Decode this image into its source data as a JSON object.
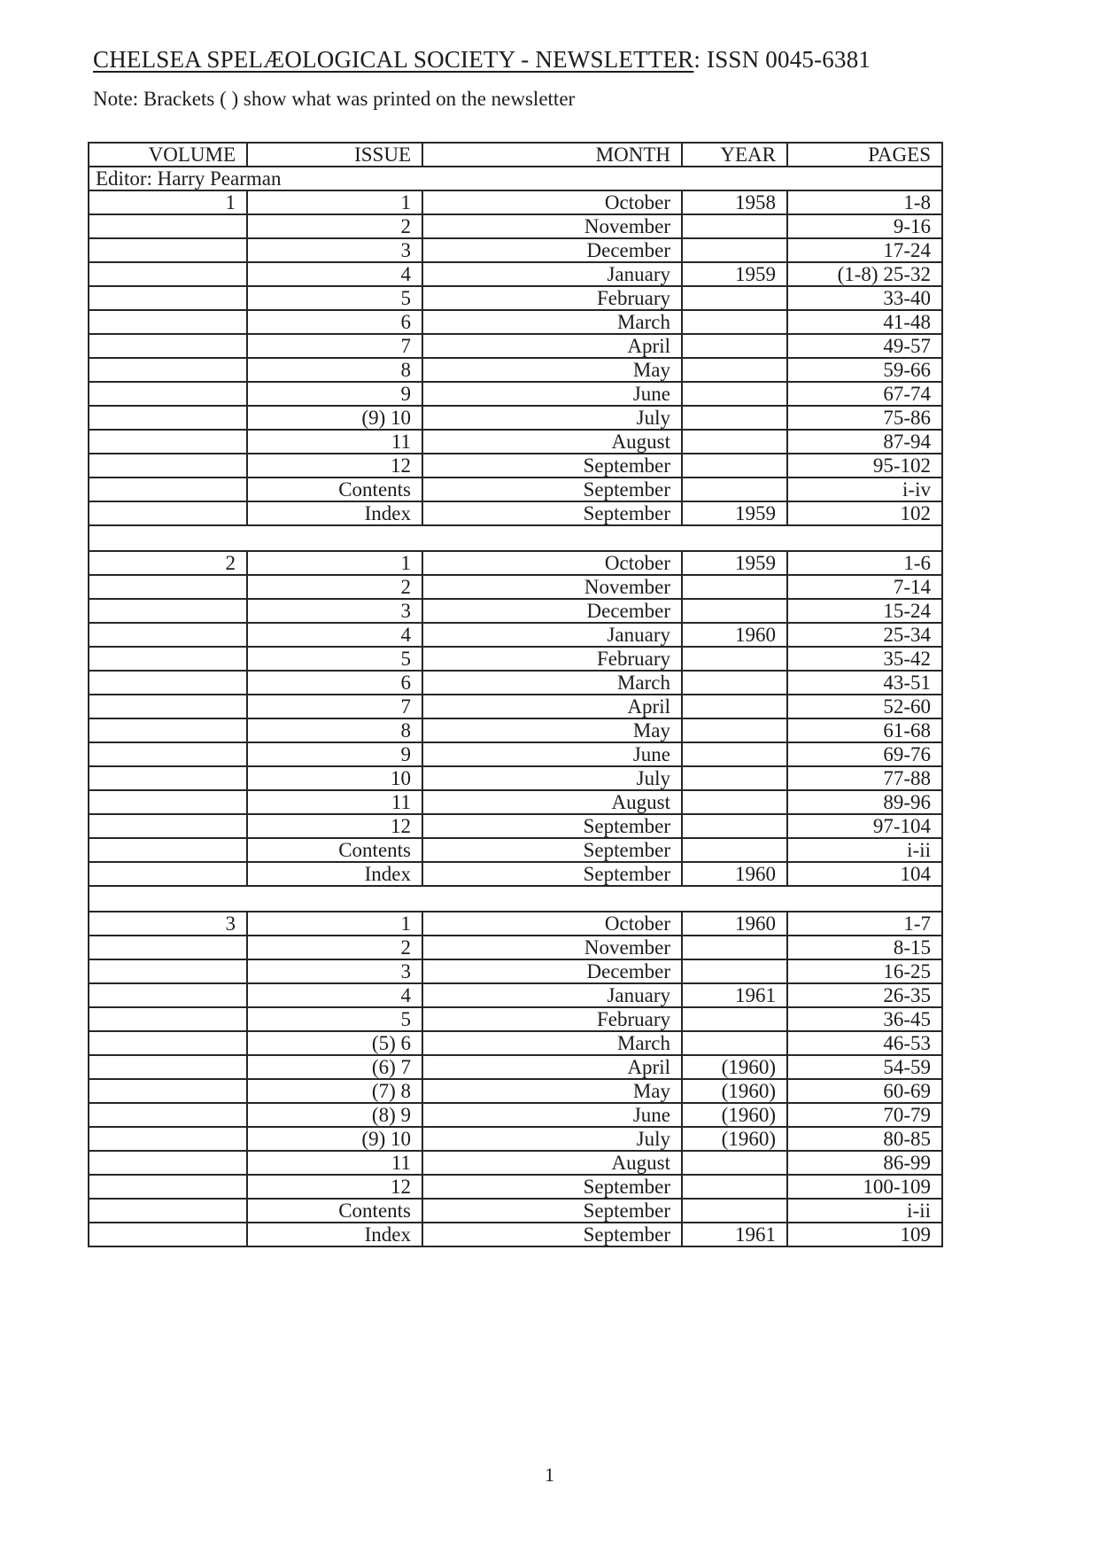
{
  "page": {
    "title_underlined": "CHELSEA SPELÆOLOGICAL SOCIETY - NEWSLETTER",
    "title_suffix": ": ISSN 0045-6381",
    "note": "Note: Brackets ( ) show what was printed on the newsletter",
    "page_number": "1"
  },
  "table": {
    "headers": [
      "VOLUME",
      "ISSUE",
      "MONTH",
      "YEAR",
      "PAGES"
    ],
    "editor_row": "Editor: Harry Pearman",
    "column_keys": [
      "volume",
      "issue",
      "month",
      "year",
      "pages"
    ],
    "blocks": [
      {
        "volume": "1",
        "rows": [
          [
            "1",
            "1",
            "October",
            "1958",
            "1-8"
          ],
          [
            "",
            "2",
            "November",
            "",
            "9-16"
          ],
          [
            "",
            "3",
            "December",
            "",
            "17-24"
          ],
          [
            "",
            "4",
            "January",
            "1959",
            "(1-8) 25-32"
          ],
          [
            "",
            "5",
            "February",
            "",
            "33-40"
          ],
          [
            "",
            "6",
            "March",
            "",
            "41-48"
          ],
          [
            "",
            "7",
            "April",
            "",
            "49-57"
          ],
          [
            "",
            "8",
            "May",
            "",
            "59-66"
          ],
          [
            "",
            "9",
            "June",
            "",
            "67-74"
          ],
          [
            "",
            "(9) 10",
            "July",
            "",
            "75-86"
          ],
          [
            "",
            "11",
            "August",
            "",
            "87-94"
          ],
          [
            "",
            "12",
            "September",
            "",
            "95-102"
          ],
          [
            "",
            "Contents",
            "September",
            "",
            "i-iv"
          ],
          [
            "",
            "Index",
            "September",
            "1959",
            "102"
          ]
        ]
      },
      {
        "volume": "2",
        "rows": [
          [
            "2",
            "1",
            "October",
            "1959",
            "1-6"
          ],
          [
            "",
            "2",
            "November",
            "",
            "7-14"
          ],
          [
            "",
            "3",
            "December",
            "",
            "15-24"
          ],
          [
            "",
            "4",
            "January",
            "1960",
            "25-34"
          ],
          [
            "",
            "5",
            "February",
            "",
            "35-42"
          ],
          [
            "",
            "6",
            "March",
            "",
            "43-51"
          ],
          [
            "",
            "7",
            "April",
            "",
            "52-60"
          ],
          [
            "",
            "8",
            "May",
            "",
            "61-68"
          ],
          [
            "",
            "9",
            "June",
            "",
            "69-76"
          ],
          [
            "",
            "10",
            "July",
            "",
            "77-88"
          ],
          [
            "",
            "11",
            "August",
            "",
            "89-96"
          ],
          [
            "",
            "12",
            "September",
            "",
            "97-104"
          ],
          [
            "",
            "Contents",
            "September",
            "",
            "i-ii"
          ],
          [
            "",
            "Index",
            "September",
            "1960",
            "104"
          ]
        ]
      },
      {
        "volume": "3",
        "rows": [
          [
            "3",
            "1",
            "October",
            "1960",
            "1-7"
          ],
          [
            "",
            "2",
            "November",
            "",
            "8-15"
          ],
          [
            "",
            "3",
            "December",
            "",
            "16-25"
          ],
          [
            "",
            "4",
            "January",
            "1961",
            "26-35"
          ],
          [
            "",
            "5",
            "February",
            "",
            "36-45"
          ],
          [
            "",
            "(5) 6",
            "March",
            "",
            "46-53"
          ],
          [
            "",
            "(6) 7",
            "April",
            "(1960)",
            "54-59"
          ],
          [
            "",
            "(7) 8",
            "May",
            "(1960)",
            "60-69"
          ],
          [
            "",
            "(8) 9",
            "June",
            "(1960)",
            "70-79"
          ],
          [
            "",
            "(9) 10",
            "July",
            "(1960)",
            "80-85"
          ],
          [
            "",
            "11",
            "August",
            "",
            "86-99"
          ],
          [
            "",
            "12",
            "September",
            "",
            "100-109"
          ],
          [
            "",
            "Contents",
            "September",
            "",
            "i-ii"
          ],
          [
            "",
            "Index",
            "September",
            "1961",
            "109"
          ]
        ]
      }
    ]
  }
}
